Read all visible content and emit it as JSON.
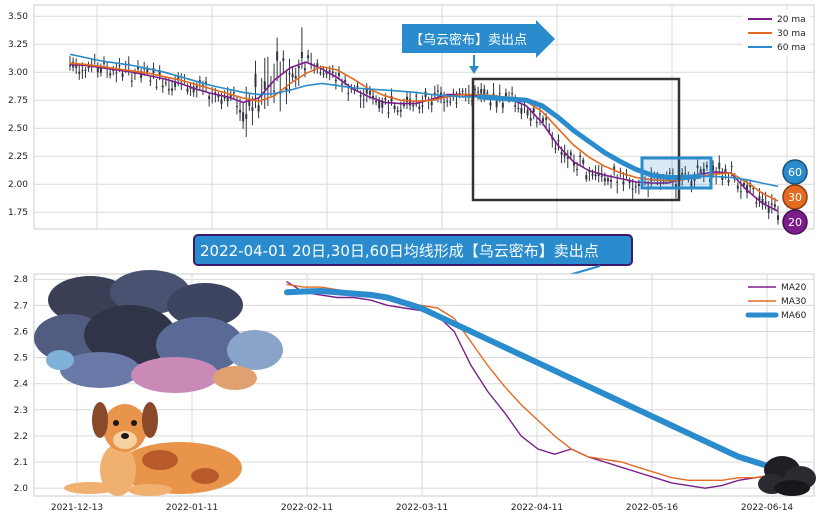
{
  "colors": {
    "ma20": "#7b1e8c",
    "ma30": "#e36a1f",
    "ma60": "#2a8ccc",
    "candle": "#2f3440",
    "banner": "#2a8ccc",
    "banner_dark": "#2a63a8",
    "box": "#333333",
    "grid": "#d9d9d9"
  },
  "top_banner": "【乌云密布】卖出点",
  "bottom_banner": "2022-04-01 20日,30日,60日均线形成【乌云密布】卖出点",
  "badges": [
    "60",
    "30",
    "20"
  ],
  "chart_data": [
    {
      "type": "line",
      "description_role": "price with moving averages",
      "y_ticks": [
        "1.75",
        "2.00",
        "2.25",
        "2.50",
        "2.75",
        "3.00",
        "3.25",
        "3.50"
      ],
      "ylim": [
        1.6,
        3.6
      ],
      "legend": [
        "20 ma",
        "30 ma",
        "60 ma"
      ],
      "legend_position": "top-right",
      "series": [
        {
          "name": "20 ma",
          "values": [
            3.07,
            3.06,
            3.04,
            3.02,
            3.0,
            2.97,
            2.94,
            2.9,
            2.85,
            2.81,
            2.78,
            2.73,
            2.77,
            2.93,
            3.04,
            3.09,
            3.03,
            2.95,
            2.85,
            2.78,
            2.73,
            2.72,
            2.72,
            2.76,
            2.8,
            2.8,
            2.79,
            2.77,
            2.76,
            2.7,
            2.55,
            2.35,
            2.2,
            2.12,
            2.08,
            2.05,
            2.02,
            2.01,
            2.01,
            2.05,
            2.09,
            2.11,
            2.1,
            1.95,
            1.83,
            1.76
          ]
        },
        {
          "name": "30 ma",
          "values": [
            3.08,
            3.07,
            3.05,
            3.03,
            3.01,
            2.99,
            2.96,
            2.93,
            2.89,
            2.85,
            2.81,
            2.77,
            2.74,
            2.79,
            2.9,
            2.99,
            3.05,
            3.02,
            2.94,
            2.85,
            2.79,
            2.75,
            2.74,
            2.75,
            2.78,
            2.8,
            2.8,
            2.79,
            2.77,
            2.74,
            2.65,
            2.5,
            2.35,
            2.24,
            2.16,
            2.1,
            2.06,
            2.04,
            2.03,
            2.04,
            2.07,
            2.09,
            2.1,
            2.02,
            1.92,
            1.85
          ]
        },
        {
          "name": "60 ma",
          "values": [
            3.16,
            3.13,
            3.1,
            3.08,
            3.06,
            3.03,
            3.0,
            2.96,
            2.92,
            2.88,
            2.85,
            2.82,
            2.8,
            2.81,
            2.84,
            2.88,
            2.9,
            2.88,
            2.86,
            2.85,
            2.84,
            2.83,
            2.82,
            2.8,
            2.79,
            2.78,
            2.78,
            2.77,
            2.76,
            2.75,
            2.7,
            2.6,
            2.48,
            2.38,
            2.28,
            2.2,
            2.13,
            2.08,
            2.06,
            2.06,
            2.07,
            2.07,
            2.06,
            2.04,
            2.01,
            1.98
          ]
        }
      ]
    },
    {
      "type": "line",
      "description_role": "moving averages detail",
      "x_ticks": [
        "2021-12-13",
        "2022-01-11",
        "2022-02-11",
        "2022-03-11",
        "2022-04-11",
        "2022-05-16",
        "2022-06-14"
      ],
      "y_ticks": [
        "2.0",
        "2.1",
        "2.2",
        "2.3",
        "2.4",
        "2.5",
        "2.6",
        "2.7",
        "2.8"
      ],
      "ylim": [
        1.97,
        2.82
      ],
      "legend": [
        "MA20",
        "MA30",
        "MA60"
      ],
      "legend_position": "top-right",
      "series": [
        {
          "name": "MA20",
          "values": [
            2.79,
            2.75,
            2.74,
            2.73,
            2.73,
            2.72,
            2.7,
            2.69,
            2.68,
            2.66,
            2.6,
            2.47,
            2.37,
            2.29,
            2.2,
            2.15,
            2.13,
            2.15,
            2.12,
            2.1,
            2.08,
            2.06,
            2.04,
            2.02,
            2.01,
            2.0,
            2.01,
            2.03,
            2.04,
            2.05
          ]
        },
        {
          "name": "MA30",
          "values": [
            2.78,
            2.77,
            2.77,
            2.76,
            2.75,
            2.74,
            2.72,
            2.71,
            2.7,
            2.69,
            2.65,
            2.56,
            2.47,
            2.39,
            2.32,
            2.26,
            2.2,
            2.15,
            2.12,
            2.11,
            2.1,
            2.08,
            2.06,
            2.04,
            2.03,
            2.03,
            2.03,
            2.04,
            2.04,
            2.05
          ]
        },
        {
          "name": "MA60",
          "values": [
            2.75,
            2.753,
            2.755,
            2.75,
            2.745,
            2.74,
            2.73,
            2.71,
            2.69,
            2.66,
            2.63,
            2.6,
            2.57,
            2.54,
            2.51,
            2.48,
            2.45,
            2.42,
            2.39,
            2.36,
            2.33,
            2.3,
            2.27,
            2.24,
            2.21,
            2.18,
            2.15,
            2.12,
            2.1,
            2.08
          ]
        }
      ]
    }
  ]
}
